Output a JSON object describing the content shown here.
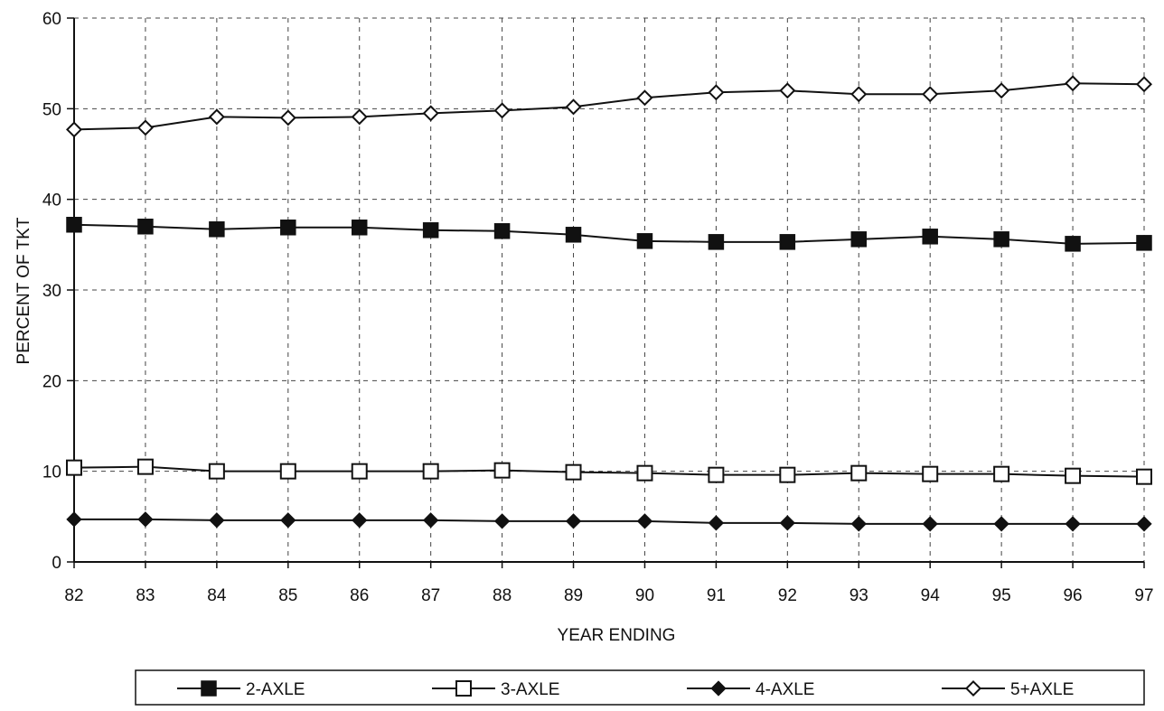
{
  "chart_data": {
    "type": "line",
    "title": "",
    "xlabel": "YEAR ENDING",
    "ylabel": "PERCENT OF TKT",
    "ylim": [
      0,
      60
    ],
    "yticks": [
      "0",
      "10",
      "20",
      "30",
      "40",
      "50",
      "60"
    ],
    "categories": [
      "82",
      "83",
      "84",
      "85",
      "86",
      "87",
      "88",
      "89",
      "90",
      "91",
      "92",
      "93",
      "94",
      "95",
      "96",
      "97"
    ],
    "grid": "dashed",
    "legend_position": "bottom",
    "series": [
      {
        "name": "2-AXLE",
        "marker": "filled-square",
        "values": [
          37.2,
          37.0,
          36.7,
          36.9,
          36.9,
          36.6,
          36.5,
          36.1,
          35.4,
          35.3,
          35.3,
          35.6,
          35.9,
          35.6,
          35.1,
          35.2
        ]
      },
      {
        "name": "3-AXLE",
        "marker": "open-square",
        "values": [
          10.4,
          10.5,
          10.0,
          10.0,
          10.0,
          10.0,
          10.1,
          9.9,
          9.8,
          9.6,
          9.6,
          9.8,
          9.7,
          9.7,
          9.5,
          9.4
        ]
      },
      {
        "name": "4-AXLE",
        "marker": "filled-diamond",
        "values": [
          4.7,
          4.7,
          4.6,
          4.6,
          4.6,
          4.6,
          4.5,
          4.5,
          4.5,
          4.3,
          4.3,
          4.2,
          4.2,
          4.2,
          4.2,
          4.2
        ]
      },
      {
        "name": "5+AXLE",
        "marker": "open-diamond",
        "values": [
          47.7,
          47.9,
          49.1,
          49.0,
          49.1,
          49.5,
          49.8,
          50.2,
          51.2,
          51.8,
          52.0,
          51.6,
          51.6,
          52.0,
          52.8,
          52.7
        ]
      }
    ]
  }
}
